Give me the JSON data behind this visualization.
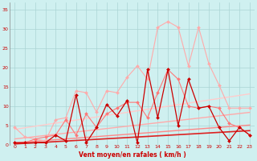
{
  "x": [
    0,
    1,
    2,
    3,
    4,
    5,
    6,
    7,
    8,
    9,
    10,
    11,
    12,
    13,
    14,
    15,
    16,
    17,
    18,
    19,
    20,
    21,
    22,
    23
  ],
  "series": [
    {
      "name": "line1_light_pink",
      "color": "#ffaaaa",
      "linewidth": 0.8,
      "marker": "D",
      "markersize": 2.0,
      "y": [
        4.5,
        2.0,
        1.5,
        1.0,
        6.5,
        7.0,
        14.0,
        13.5,
        8.5,
        14.0,
        13.5,
        17.5,
        20.5,
        17.0,
        30.5,
        32.0,
        30.5,
        20.5,
        30.5,
        21.0,
        15.5,
        9.5,
        9.5,
        9.5
      ]
    },
    {
      "name": "line2_medium_pink",
      "color": "#ff7777",
      "linewidth": 0.8,
      "marker": "D",
      "markersize": 2.0,
      "y": [
        0.5,
        0.5,
        1.5,
        2.0,
        2.5,
        6.5,
        2.5,
        8.0,
        4.5,
        8.0,
        9.5,
        11.0,
        11.0,
        7.0,
        13.5,
        19.5,
        17.0,
        10.0,
        9.5,
        10.0,
        9.5,
        5.5,
        4.5,
        2.5
      ]
    },
    {
      "name": "line3_dark_red",
      "color": "#cc0000",
      "linewidth": 0.9,
      "marker": "D",
      "markersize": 2.0,
      "y": [
        0.5,
        0.5,
        0.5,
        0.5,
        2.5,
        1.0,
        13.0,
        0.5,
        4.5,
        10.5,
        7.5,
        11.5,
        0.5,
        19.5,
        7.0,
        19.5,
        5.0,
        17.0,
        9.5,
        10.0,
        4.5,
        1.0,
        4.5,
        2.5
      ]
    },
    {
      "name": "trend1_lightest",
      "color": "#ffcccc",
      "linewidth": 1.0,
      "marker": null,
      "y": [
        4.0,
        4.4,
        4.8,
        5.2,
        5.6,
        6.0,
        6.4,
        6.8,
        7.2,
        7.6,
        8.0,
        8.4,
        8.8,
        9.2,
        9.6,
        10.0,
        10.4,
        10.8,
        11.2,
        11.6,
        12.0,
        12.4,
        12.8,
        13.2
      ]
    },
    {
      "name": "trend2_light",
      "color": "#ffaaaa",
      "linewidth": 1.0,
      "marker": null,
      "y": [
        1.5,
        1.8,
        2.1,
        2.4,
        2.7,
        3.0,
        3.3,
        3.6,
        3.9,
        4.2,
        4.5,
        4.8,
        5.1,
        5.4,
        5.7,
        6.0,
        6.3,
        6.6,
        6.9,
        7.2,
        7.5,
        7.8,
        8.1,
        8.4
      ]
    },
    {
      "name": "trend3_medium",
      "color": "#ff8888",
      "linewidth": 1.0,
      "marker": null,
      "y": [
        0.5,
        0.7,
        0.9,
        1.1,
        1.3,
        1.5,
        1.7,
        1.9,
        2.1,
        2.3,
        2.5,
        2.7,
        2.9,
        3.1,
        3.3,
        3.5,
        3.7,
        3.9,
        4.1,
        4.3,
        4.5,
        4.7,
        4.9,
        5.1
      ]
    },
    {
      "name": "trend4_dark",
      "color": "#dd2222",
      "linewidth": 1.2,
      "marker": null,
      "y": [
        0.2,
        0.35,
        0.5,
        0.65,
        0.8,
        0.95,
        1.1,
        1.25,
        1.4,
        1.55,
        1.7,
        1.85,
        2.0,
        2.15,
        2.3,
        2.45,
        2.6,
        2.75,
        2.9,
        3.05,
        3.2,
        3.35,
        3.5,
        3.65
      ]
    }
  ],
  "xlabel": "Vent moyen/en rafales ( km/h )",
  "xlim": [
    -0.5,
    23.5
  ],
  "ylim": [
    0,
    37
  ],
  "yticks": [
    0,
    5,
    10,
    15,
    20,
    25,
    30,
    35
  ],
  "xticks": [
    0,
    1,
    2,
    3,
    4,
    5,
    6,
    7,
    8,
    9,
    10,
    11,
    12,
    13,
    14,
    15,
    16,
    17,
    18,
    19,
    20,
    21,
    22,
    23
  ],
  "bg_color": "#cff0f0",
  "grid_color": "#aad4d4",
  "tick_color": "#cc0000",
  "label_color": "#cc0000"
}
